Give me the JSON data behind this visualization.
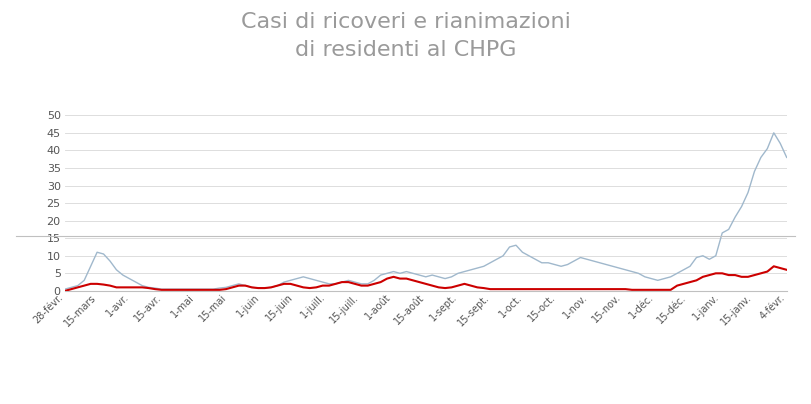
{
  "title_line1": "Casi di ricoveri e rianimazioni",
  "title_line2": "di residenti al CHPG",
  "title_color": "#9a9a9a",
  "title_fontsize": 16,
  "line1_color": "#a0b8cc",
  "line2_color": "#cc0000",
  "ylim": [
    0,
    50
  ],
  "yticks": [
    0,
    5,
    10,
    15,
    20,
    25,
    30,
    35,
    40,
    45,
    50
  ],
  "background_color": "#ffffff",
  "plot_bg_color": "#ffffff",
  "grid_color": "#d8d8d8",
  "tick_labels": [
    "28-févr.",
    "15-mars",
    "1-avr.",
    "15-avr.",
    "1-mai",
    "15-mai",
    "1-juin",
    "15-juin",
    "1-juill.",
    "15-juill.",
    "1-août",
    "15-août",
    "1-sept.",
    "15-sept.",
    "1-oct.",
    "15-oct.",
    "1-nov.",
    "15-nov.",
    "1-déc.",
    "15-déc.",
    "1-janv.",
    "15-janv.",
    "4-févr."
  ],
  "blue_series": [
    0.5,
    1.0,
    1.5,
    3.0,
    7.0,
    11.0,
    10.5,
    8.5,
    6.0,
    4.5,
    3.5,
    2.5,
    1.5,
    1.0,
    0.8,
    0.5,
    0.5,
    0.5,
    0.5,
    0.5,
    0.5,
    0.5,
    0.5,
    0.5,
    0.8,
    1.0,
    1.5,
    2.0,
    1.5,
    1.0,
    0.8,
    0.8,
    1.0,
    1.5,
    2.5,
    3.0,
    3.5,
    4.0,
    3.5,
    3.0,
    2.5,
    2.0,
    2.0,
    2.5,
    3.0,
    2.5,
    2.0,
    2.0,
    3.0,
    4.5,
    5.0,
    5.5,
    5.0,
    5.5,
    5.0,
    4.5,
    4.0,
    4.5,
    4.0,
    3.5,
    4.0,
    5.0,
    5.5,
    6.0,
    6.5,
    7.0,
    8.0,
    9.0,
    10.0,
    12.5,
    13.0,
    11.0,
    10.0,
    9.0,
    8.0,
    8.0,
    7.5,
    7.0,
    7.5,
    8.5,
    9.5,
    9.0,
    8.5,
    8.0,
    7.5,
    7.0,
    6.5,
    6.0,
    5.5,
    5.0,
    4.0,
    3.5,
    3.0,
    3.5,
    4.0,
    5.0,
    6.0,
    7.0,
    9.5,
    10.0,
    9.0,
    10.0,
    16.5,
    17.5,
    21.0,
    24.0,
    28.0,
    34.0,
    38.0,
    40.5,
    45.0,
    42.0,
    38.0
  ],
  "red_series": [
    0.0,
    0.5,
    1.0,
    1.5,
    2.0,
    2.0,
    1.8,
    1.5,
    1.0,
    1.0,
    1.0,
    1.0,
    1.0,
    0.8,
    0.5,
    0.3,
    0.3,
    0.3,
    0.3,
    0.3,
    0.3,
    0.3,
    0.3,
    0.3,
    0.3,
    0.5,
    1.0,
    1.5,
    1.5,
    1.0,
    0.8,
    0.8,
    1.0,
    1.5,
    2.0,
    2.0,
    1.5,
    1.0,
    0.8,
    1.0,
    1.5,
    1.5,
    2.0,
    2.5,
    2.5,
    2.0,
    1.5,
    1.5,
    2.0,
    2.5,
    3.5,
    4.0,
    3.5,
    3.5,
    3.0,
    2.5,
    2.0,
    1.5,
    1.0,
    0.8,
    1.0,
    1.5,
    2.0,
    1.5,
    1.0,
    0.8,
    0.5,
    0.5,
    0.5,
    0.5,
    0.5,
    0.5,
    0.5,
    0.5,
    0.5,
    0.5,
    0.5,
    0.5,
    0.5,
    0.5,
    0.5,
    0.5,
    0.5,
    0.5,
    0.5,
    0.5,
    0.5,
    0.5,
    0.3,
    0.3,
    0.3,
    0.3,
    0.3,
    0.3,
    0.3,
    1.5,
    2.0,
    2.5,
    3.0,
    4.0,
    4.5,
    5.0,
    5.0,
    4.5,
    4.5,
    4.0,
    4.0,
    4.5,
    5.0,
    5.5,
    7.0,
    6.5,
    6.0
  ]
}
